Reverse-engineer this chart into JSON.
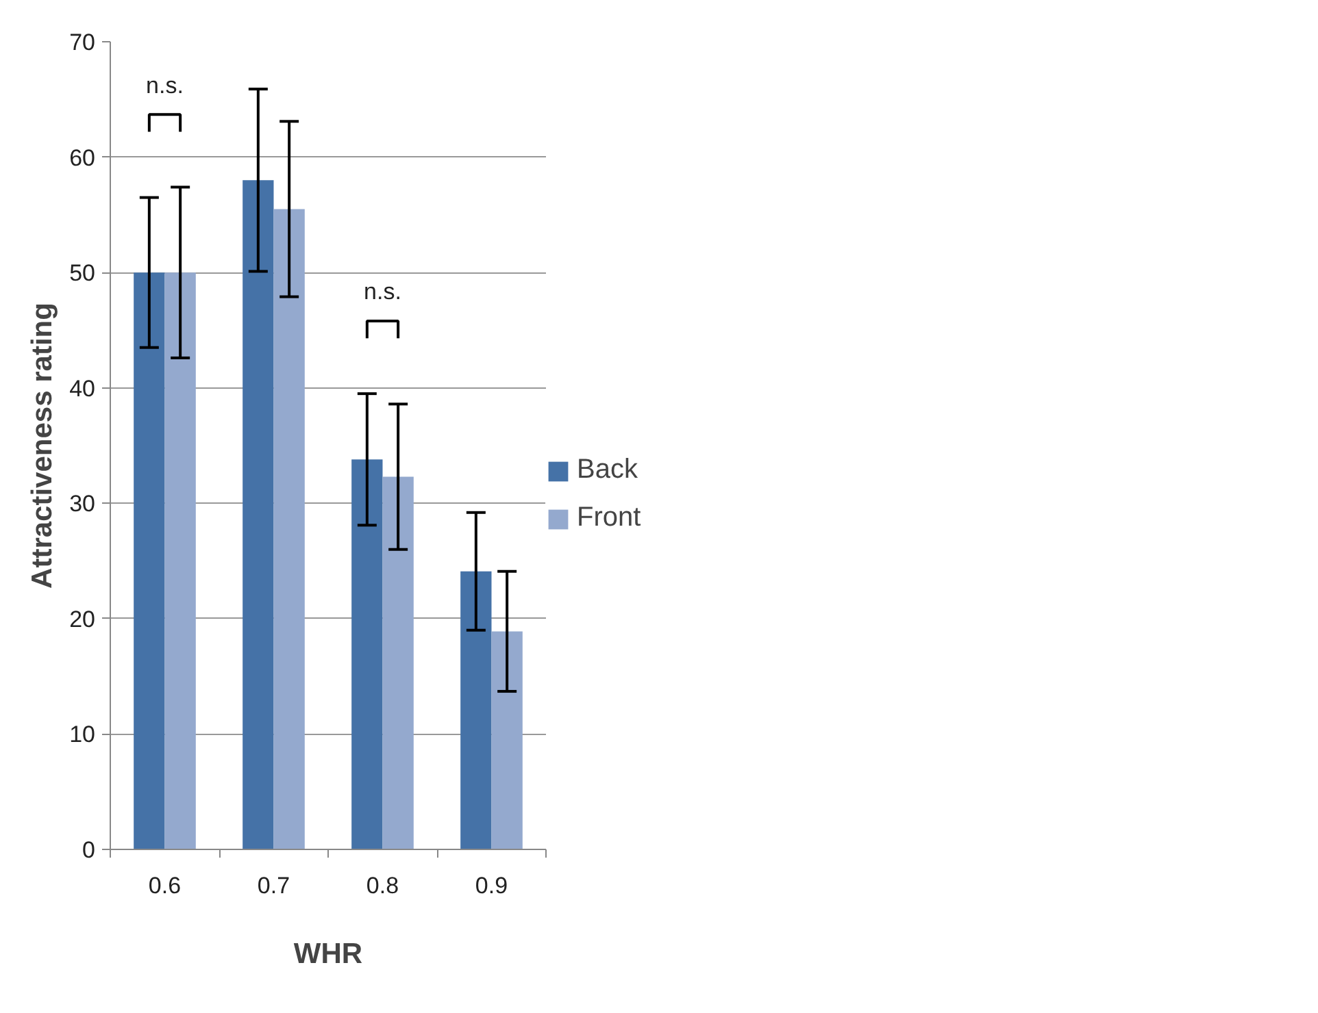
{
  "chart_data": {
    "type": "bar",
    "xlabel": "WHR",
    "ylabel": "Attractiveness rating",
    "categories": [
      "0.6",
      "0.7",
      "0.8",
      "0.9"
    ],
    "series": [
      {
        "name": "Back",
        "color": "#4572a7",
        "values": [
          50,
          58,
          33.8,
          24.1
        ],
        "errors": [
          6.5,
          7.9,
          5.7,
          5.1
        ]
      },
      {
        "name": "Front",
        "color": "#94a9ce",
        "values": [
          50,
          55.5,
          32.3,
          18.9
        ],
        "errors": [
          7.4,
          7.6,
          6.3,
          5.2
        ]
      }
    ],
    "ylim": [
      0,
      70
    ],
    "yticks": [
      0,
      10,
      20,
      30,
      40,
      50,
      60,
      70
    ],
    "grid": "y",
    "legend": "right",
    "annotations": [
      "n.s.",
      "n.s."
    ]
  }
}
